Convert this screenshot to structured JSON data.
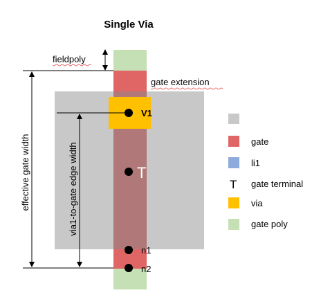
{
  "title": "Single Via",
  "labels": {
    "fieldpoly": "fieldpoly",
    "gate_extension": "gate  extension",
    "via_label": "V1",
    "terminal_symbol": "T",
    "n1": "n1",
    "n2": "n2",
    "effective_gate_width": "effective gate width",
    "via_to_gate": "via1-to-gate edge width"
  },
  "legend": {
    "items": [
      {
        "label": "",
        "color": "#c8c8c8"
      },
      {
        "label": "gate",
        "color": "#e06666"
      },
      {
        "label": "li1",
        "color": "#8faadc"
      },
      {
        "label": "gate terminal",
        "symbol": "T"
      },
      {
        "label": "via",
        "color": "#ffc000"
      },
      {
        "label": "gate poly",
        "color": "#c5e0b4"
      }
    ]
  },
  "colors": {
    "li1_region": "#c8c8c8",
    "gate": "#e06666",
    "gate_overlap": "#b07878",
    "via": "#ffc000",
    "gate_poly": "#c5e0b4",
    "squiggle": "#e04040",
    "dot": "#000000"
  }
}
